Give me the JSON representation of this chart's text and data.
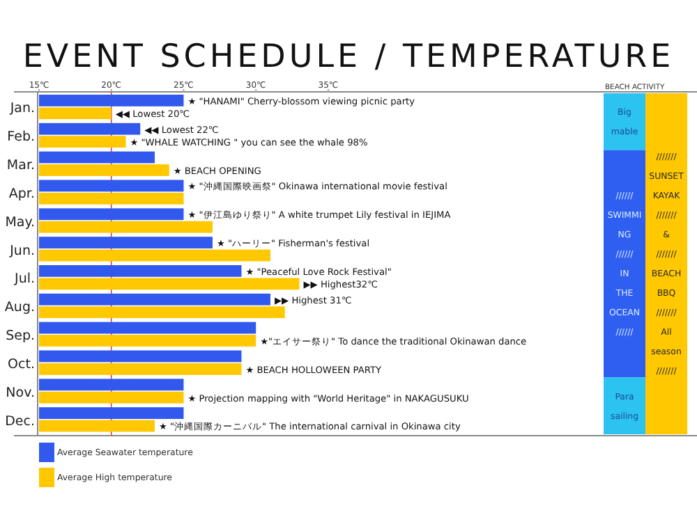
{
  "chart_data": {
    "type": "bar",
    "orientation": "horizontal",
    "title": "EVENT SCHEDULE / TEMPERATURE",
    "categories": [
      "Jan.",
      "Feb.",
      "Mar.",
      "Apr.",
      "May.",
      "Jun.",
      "Jul.",
      "Aug.",
      "Sep.",
      "Oct.",
      "Nov.",
      "Dec."
    ],
    "series": [
      {
        "name": "Average Seawater temperature",
        "color": "#3259ee",
        "values": [
          25,
          22,
          23,
          25,
          25,
          27,
          29,
          31,
          30,
          29,
          25,
          25
        ]
      },
      {
        "name": "Average High temperature",
        "color": "#ffc800",
        "values": [
          20,
          21,
          24,
          25,
          27,
          31,
          33,
          32,
          30,
          29,
          25,
          23
        ]
      }
    ],
    "xlim": [
      15,
      60.5
    ],
    "xticks": [
      {
        "value": 15,
        "label": "15℃"
      },
      {
        "value": 20,
        "label": "20℃"
      },
      {
        "value": 25,
        "label": "25℃"
      },
      {
        "value": 30,
        "label": "30℃"
      },
      {
        "value": 35,
        "label": "35℃"
      }
    ],
    "ref_lines": [
      {
        "axis": "x",
        "value": 20,
        "color": "#e04040"
      }
    ],
    "legend": "bottom left",
    "annotations": [
      "★ \"HANAMI\" Cherry-blossom viewing picnic party",
      {
        "text": "◀◀ Lowest 20℃",
        "x": 20,
        "y": "Jan."
      },
      {
        "text": "◀◀ Lowest 22℃",
        "x": 22,
        "y": "Feb."
      },
      "★ \"WHALE WATCHING \" you can see the whale 98%",
      "★ BEACH OPENING",
      "★ \"沖縄国際映画祭\" Okinawa international movie festival",
      "★ \"伊江島ゆり祭り\" A white trumpet Lily festival in IEJIMA",
      "★ \"ハーリー\" Fisherman's festival",
      "★ \"Peaceful Love Rock Festival\"",
      {
        "text": "▶▶ Highest32℃",
        "x": 33,
        "y": "Jul."
      },
      {
        "text": "▶▶ Highest 31℃",
        "x": 31,
        "y": "Aug."
      },
      "★\"エイサー祭り\" To dance the traditional Okinawan dance",
      "★ BEACH HOLLOWEEN PARTY",
      "★ Projection mapping with \"World Heritage\" in NAKAGUSUKU",
      "★ \"沖縄国際カーニバル\" The international carnival in Okinawa city",
      "BEACH ACTIVITY",
      "Big mable",
      "////// SWIMMING ////// IN THE OCEAN //////",
      "Para sailing",
      "/////// SUNSET KAYAK /////// & /////// BEACH BBQ /////// All season ///////"
    ]
  }
}
